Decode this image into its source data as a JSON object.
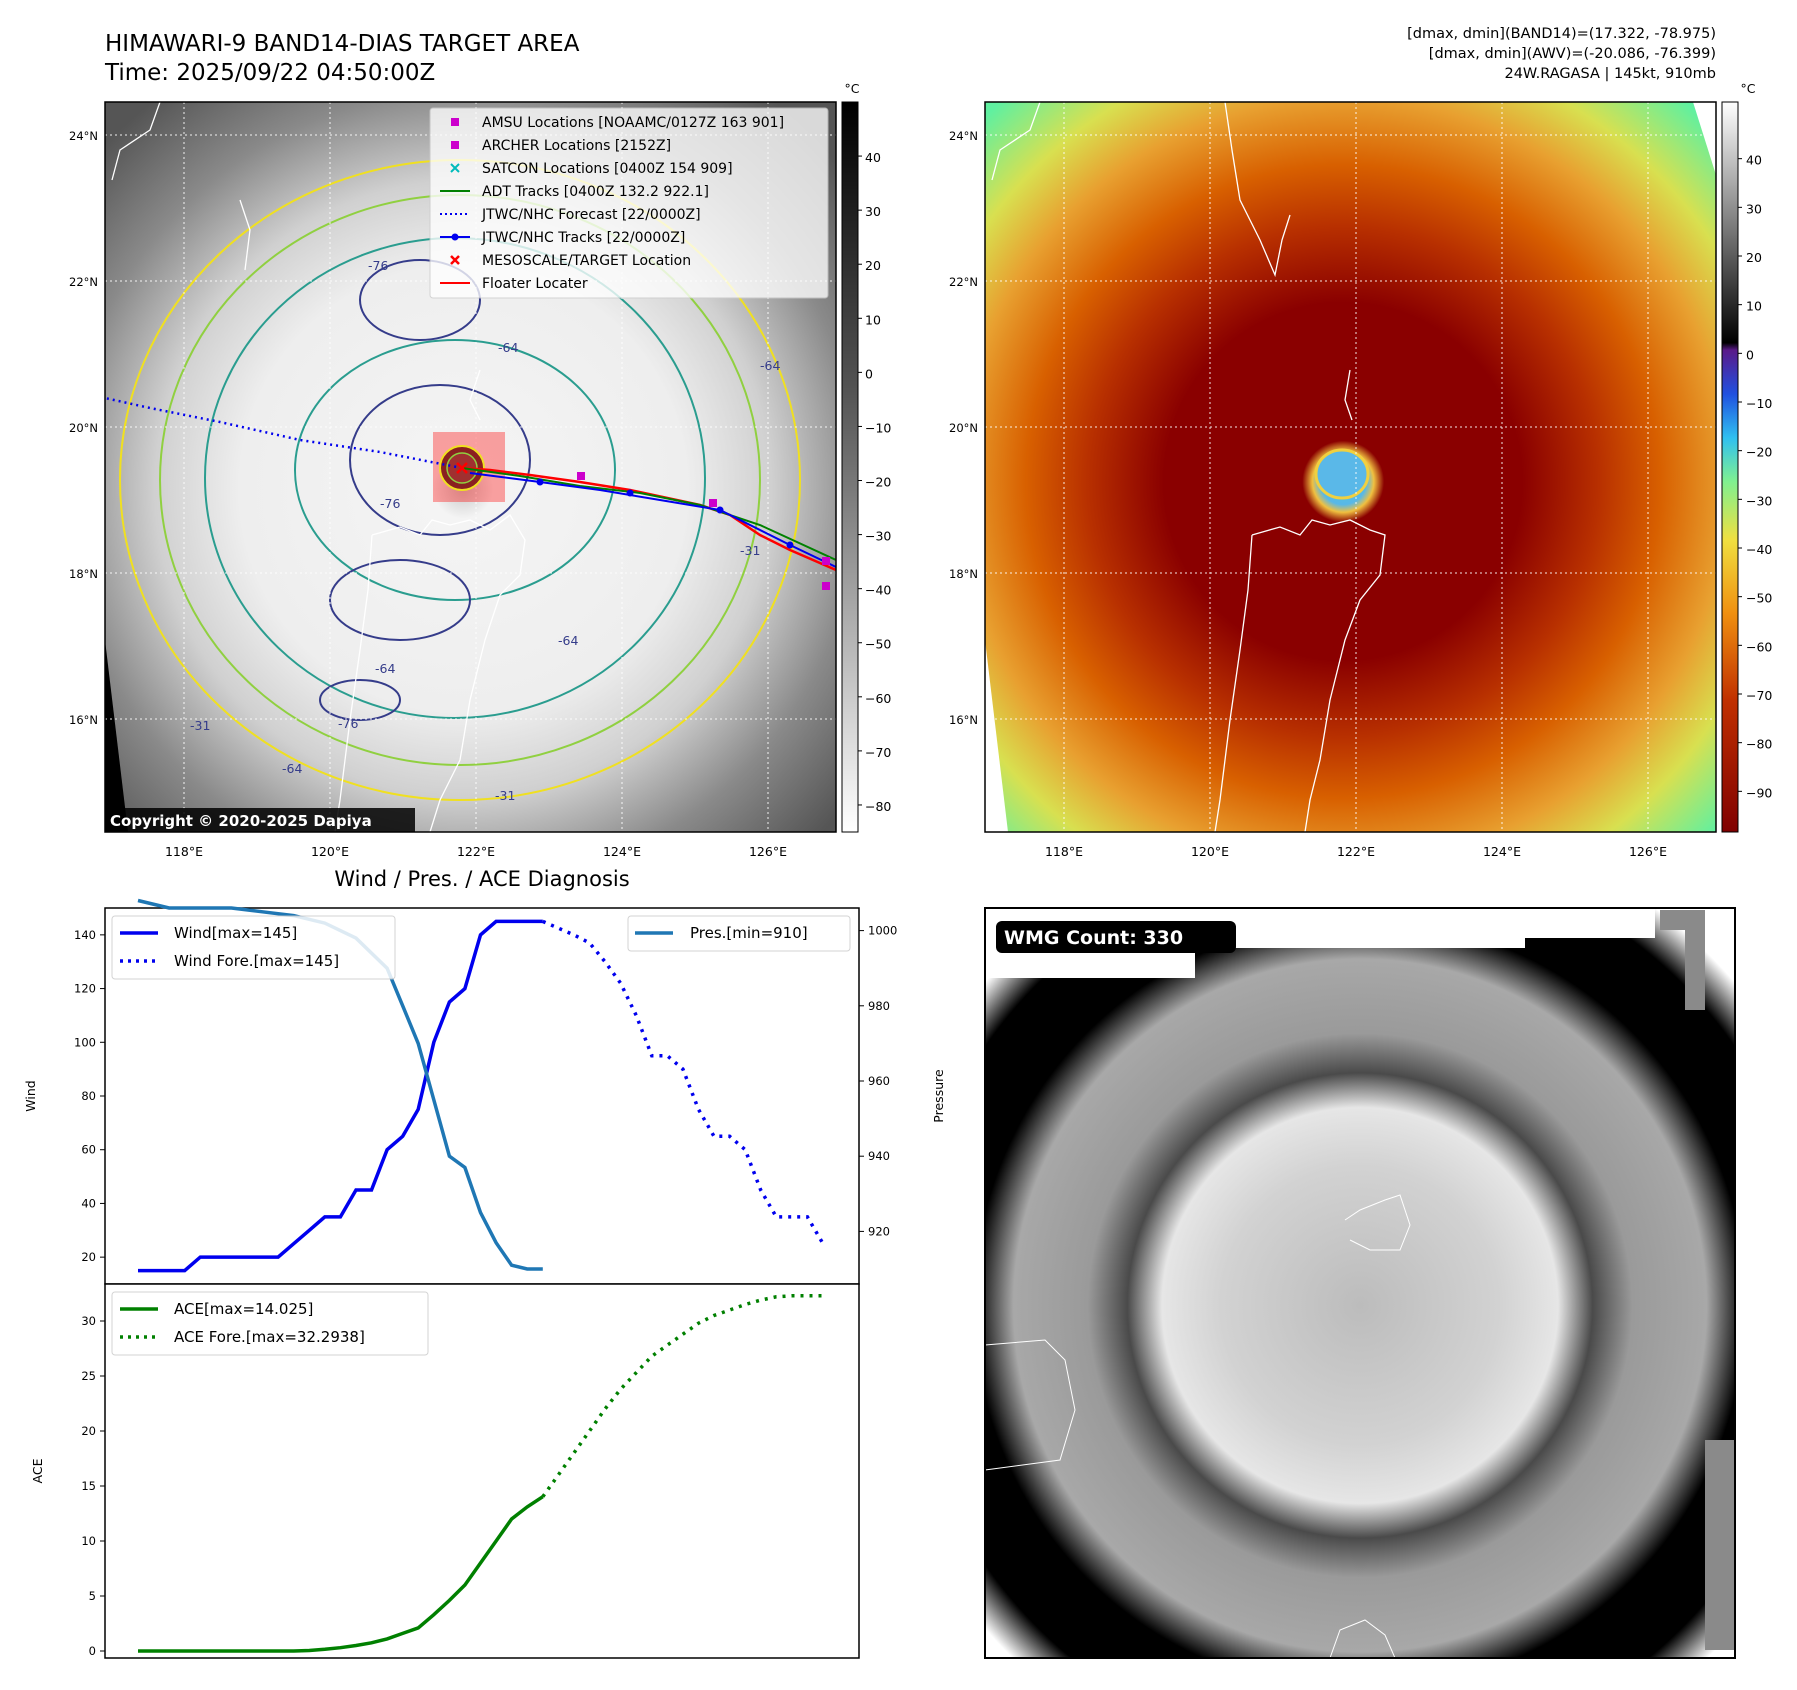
{
  "header": {
    "title_line1": "HIMAWARI-9 BAND14-DIAS TARGET AREA",
    "title_line2": "Time: 2025/09/22 04:50:00Z",
    "info_line1": "[dmax, dmin](BAND14)=(17.322, -78.975)",
    "info_line2": "[dmax, dmin](AWV)=(-20.086, -76.399)",
    "info_line3": "24W.RAGASA | 145kt, 910mb"
  },
  "map_axes": {
    "lon_ticks": [
      "118°E",
      "120°E",
      "122°E",
      "124°E",
      "126°E"
    ],
    "lat_ticks": [
      "24°N",
      "22°N",
      "20°N",
      "18°N",
      "16°N"
    ]
  },
  "ir_panel": {
    "legend": [
      {
        "label": "AMSU Locations [NOAAMC/0127Z 163 901]",
        "color": "#cc00cc",
        "marker": "square"
      },
      {
        "label": "ARCHER Locations [2152Z]",
        "color": "#cc00cc",
        "marker": "square"
      },
      {
        "label": "SATCON Locations [0400Z 154 909]",
        "color": "#00bbbb",
        "marker": "x"
      },
      {
        "label": "ADT Tracks [0400Z 132.2 922.1]",
        "color": "#008000",
        "marker": "line"
      },
      {
        "label": "JTWC/NHC Forecast [22/0000Z]",
        "color": "#0000ee",
        "marker": "dotted"
      },
      {
        "label": "JTWC/NHC Tracks [22/0000Z]",
        "color": "#0000ee",
        "marker": "line-dot"
      },
      {
        "label": "MESOSCALE/TARGET Location",
        "color": "#ff0000",
        "marker": "x"
      },
      {
        "label": "Floater Locater",
        "color": "#ff0000",
        "marker": "line"
      }
    ],
    "contour_labels": [
      "-76",
      "-64",
      "-64",
      "-76",
      "-64",
      "-76",
      "-64",
      "-31",
      "-31",
      "-64",
      "-31"
    ],
    "copyright": "Copyright © 2020-2025 Dapiya",
    "colorbar_unit": "°C",
    "colorbar_ticks": [
      "40",
      "30",
      "20",
      "10",
      "0",
      "−10",
      "−20",
      "−30",
      "−40",
      "−50",
      "−60",
      "−70",
      "−80"
    ]
  },
  "awv_panel": {
    "colorbar_unit": "°C",
    "colorbar_ticks": [
      "40",
      "30",
      "20",
      "10",
      "0",
      "−10",
      "−20",
      "−30",
      "−40",
      "−50",
      "−60",
      "−70",
      "−80",
      "−90"
    ]
  },
  "wmg_panel": {
    "label": "WMG Count: 330"
  },
  "chart_data": [
    {
      "type": "line",
      "title": "Wind / Pres. / ACE Diagnosis",
      "ylabel": "Wind",
      "y2label": "Pressure",
      "ylim": [
        10,
        150
      ],
      "y2lim": [
        910,
        1010
      ],
      "yticks": [
        "140",
        "120",
        "100",
        "80",
        "60",
        "40",
        "20"
      ],
      "y2ticks": [
        "1000",
        "980",
        "960",
        "940",
        "920"
      ],
      "series": [
        {
          "name": "Wind[max=145]",
          "color": "#0000ee",
          "style": "solid",
          "x": [
            0,
            2,
            3,
            4,
            6,
            7,
            8,
            9,
            10,
            11,
            12,
            13,
            14,
            15,
            16,
            17,
            18,
            19,
            20,
            21,
            22,
            23,
            24,
            25,
            26
          ],
          "values": [
            15,
            15,
            15,
            20,
            20,
            20,
            20,
            20,
            25,
            30,
            35,
            35,
            45,
            45,
            60,
            65,
            75,
            100,
            115,
            120,
            140,
            145,
            145,
            145,
            145
          ]
        },
        {
          "name": "Wind Fore.[max=145]",
          "color": "#0000ee",
          "style": "dotted",
          "x": [
            26,
            28,
            29,
            30,
            31,
            32,
            33,
            34,
            35,
            36,
            37,
            38,
            39,
            40,
            41,
            42,
            43,
            44
          ],
          "values": [
            145,
            140,
            137,
            130,
            122,
            110,
            95,
            95,
            90,
            75,
            65,
            65,
            60,
            45,
            35,
            35,
            35,
            25
          ]
        },
        {
          "name": "Pres.[min=910]",
          "color": "#1f77b4",
          "style": "solid",
          "axis": "right",
          "x": [
            0,
            2,
            4,
            6,
            8,
            10,
            12,
            14,
            16,
            17,
            18,
            19,
            20,
            21,
            22,
            23,
            24,
            25,
            26
          ],
          "values": [
            1008,
            1006,
            1006,
            1006,
            1005,
            1004,
            1002,
            998,
            990,
            980,
            970,
            955,
            940,
            937,
            925,
            917,
            911,
            910,
            910
          ]
        }
      ]
    },
    {
      "type": "line",
      "ylabel": "ACE",
      "ylim": [
        -1,
        33
      ],
      "yticks": [
        "30",
        "25",
        "20",
        "15",
        "10",
        "5",
        "0"
      ],
      "series": [
        {
          "name": "ACE[max=14.025]",
          "color": "#008000",
          "style": "solid",
          "x": [
            0,
            2,
            4,
            6,
            8,
            9,
            10,
            11,
            12,
            13,
            14,
            15,
            16,
            17,
            18,
            19,
            20,
            21,
            22,
            23,
            24,
            25,
            26
          ],
          "values": [
            0,
            0,
            0,
            0,
            0,
            0,
            0,
            0.05,
            0.15,
            0.3,
            0.5,
            0.75,
            1.1,
            1.6,
            2.1,
            3.3,
            4.6,
            6.0,
            8.0,
            10.0,
            12.0,
            13.1,
            14.025
          ]
        },
        {
          "name": "ACE Fore.[max=32.2938]",
          "color": "#008000",
          "style": "dotted",
          "x": [
            26,
            27,
            28,
            29,
            30,
            31,
            32,
            33,
            34,
            35,
            36,
            37,
            38,
            39,
            40,
            41,
            42,
            43,
            44
          ],
          "values": [
            14.025,
            16.0,
            18.0,
            20.0,
            22.0,
            23.8,
            25.3,
            26.8,
            27.8,
            28.8,
            29.8,
            30.5,
            31.0,
            31.5,
            31.9,
            32.2,
            32.29,
            32.29,
            32.29
          ]
        }
      ]
    }
  ]
}
